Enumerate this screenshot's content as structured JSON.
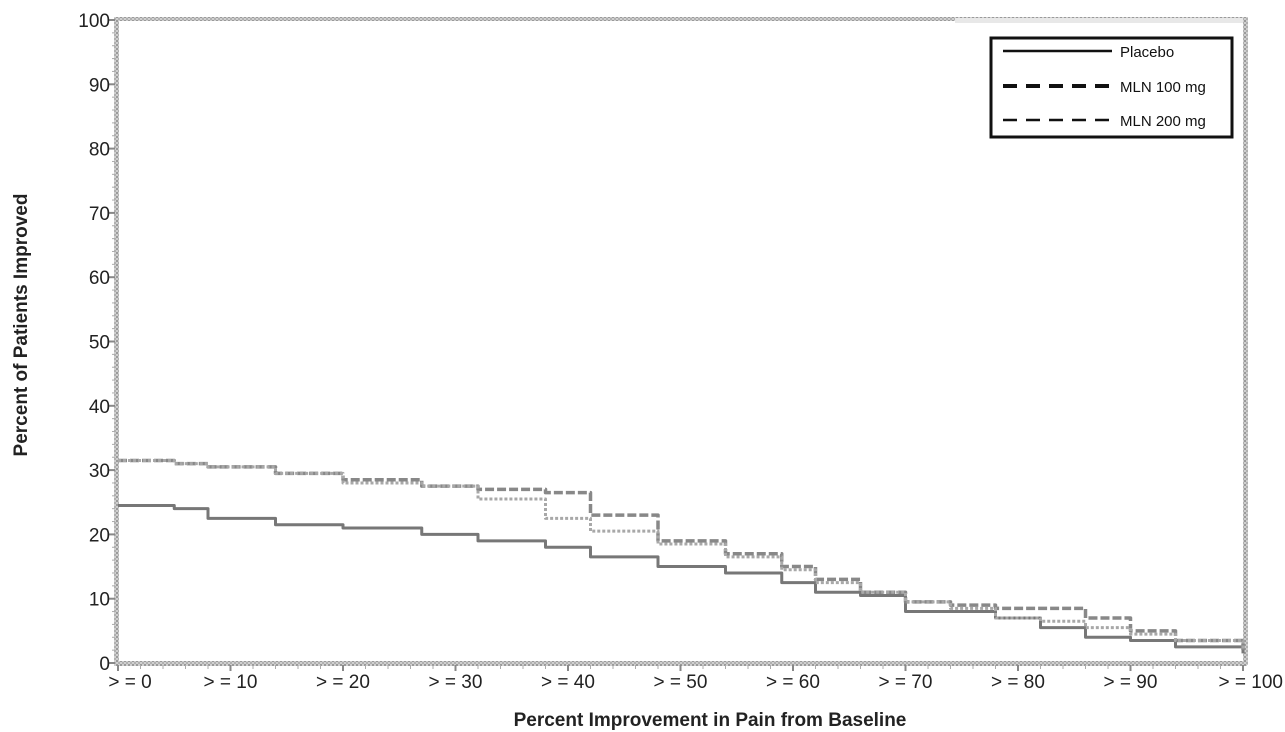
{
  "chart_data": {
    "type": "line",
    "title": "",
    "xlabel": "Percent Improvement in Pain from Baseline",
    "ylabel": "Percent of Patients Improved",
    "xlim": [
      0,
      100
    ],
    "ylim": [
      0,
      100
    ],
    "yticks": [
      0,
      10,
      20,
      30,
      40,
      50,
      60,
      70,
      80,
      90,
      100
    ],
    "x_categories": [
      ">=0",
      ">=10",
      ">=20",
      ">=30",
      ">=40",
      ">=50",
      ">=60",
      ">=70",
      ">=80",
      ">=90",
      ">=100"
    ],
    "x_tick_labels": [
      "> = 0",
      "> = 10",
      "> = 20",
      "> = 30",
      "> = 40",
      "> = 50",
      "> = 60",
      "> = 70",
      "> = 80",
      "> = 90",
      "> = 100"
    ],
    "grid": false,
    "legend_position": "top-right",
    "series": [
      {
        "name": "Placebo",
        "style": "solid",
        "color": "#777777",
        "x": [
          0,
          5,
          8,
          14,
          20,
          27,
          32,
          38,
          42,
          48,
          54,
          59,
          62,
          66,
          70,
          74,
          78,
          82,
          86,
          90,
          94,
          100
        ],
        "y": [
          24.5,
          24,
          22.5,
          21.5,
          21,
          20,
          19,
          18,
          16.5,
          15,
          14,
          12.5,
          11,
          10.5,
          8,
          8,
          7,
          5.5,
          4,
          3.5,
          2.5,
          1.5
        ]
      },
      {
        "name": "MLN 100 mg",
        "style": "dashed",
        "color": "#888888",
        "x": [
          0,
          5,
          8,
          14,
          20,
          27,
          32,
          38,
          42,
          48,
          54,
          59,
          62,
          66,
          70,
          74,
          78,
          82,
          86,
          90,
          94,
          100
        ],
        "y": [
          31.5,
          31,
          30.5,
          29.5,
          28.5,
          27.5,
          27,
          26.5,
          23,
          19,
          17,
          15,
          13,
          11,
          9.5,
          9,
          8.5,
          8.5,
          7,
          5,
          3.5,
          2
        ]
      },
      {
        "name": "MLN 200 mg",
        "style": "dotted",
        "color": "#a8a8a8",
        "x": [
          0,
          5,
          8,
          14,
          20,
          27,
          32,
          38,
          42,
          48,
          54,
          59,
          62,
          66,
          70,
          74,
          78,
          82,
          86,
          90,
          94,
          100
        ],
        "y": [
          31.5,
          31,
          30.5,
          29.5,
          28,
          27.5,
          25.5,
          22.5,
          20.5,
          18.5,
          16.5,
          14.5,
          12.5,
          11,
          9.5,
          8.5,
          7,
          6.5,
          5.5,
          4.5,
          3.5,
          2
        ]
      }
    ]
  }
}
